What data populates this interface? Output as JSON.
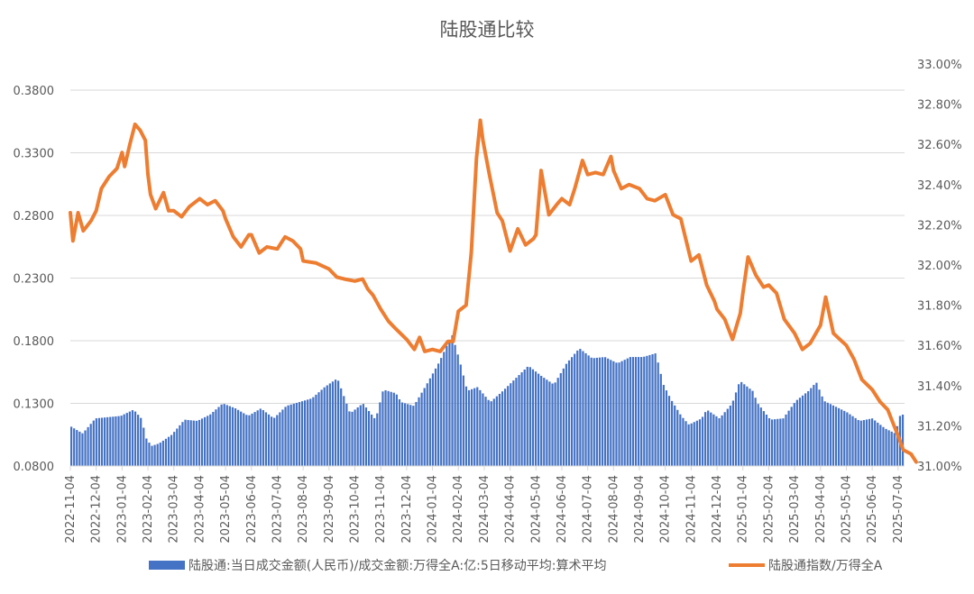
{
  "chart_data": {
    "type": "bar+line",
    "title": "陆股通比较",
    "legend_position": "bottom",
    "grid": true,
    "colors": {
      "bars": "#4472C4",
      "line": "#ED7D31",
      "grid": "#D9D9D9",
      "text": "#595959"
    },
    "y_left": {
      "ylim": [
        0.08,
        0.38
      ],
      "ticks": [
        "0.0800",
        "0.1300",
        "0.1800",
        "0.2300",
        "0.2800",
        "0.3300",
        "0.3800"
      ],
      "tick_values": [
        0.08,
        0.13,
        0.18,
        0.23,
        0.28,
        0.33,
        0.38
      ]
    },
    "y_right": {
      "ylim": [
        31.0,
        33.0
      ],
      "ticks": [
        "31.00%",
        "31.20%",
        "31.40%",
        "31.60%",
        "31.80%",
        "32.00%",
        "32.20%",
        "32.40%",
        "32.60%",
        "32.80%",
        "33.00%"
      ],
      "tick_values": [
        31.0,
        31.2,
        31.4,
        31.6,
        31.8,
        32.0,
        32.2,
        32.4,
        32.6,
        32.8,
        33.0
      ]
    },
    "x_ticks": [
      "2022-11-04",
      "2022-12-04",
      "2023-01-04",
      "2023-02-04",
      "2023-03-04",
      "2023-04-04",
      "2023-05-04",
      "2023-06-04",
      "2023-07-04",
      "2023-08-04",
      "2023-09-04",
      "2023-10-04",
      "2023-11-04",
      "2023-12-04",
      "2024-01-04",
      "2024-02-04",
      "2024-03-04",
      "2024-04-04",
      "2024-05-04",
      "2024-06-04",
      "2024-07-04",
      "2024-08-04",
      "2024-09-04",
      "2024-10-04",
      "2024-11-04",
      "2024-12-04",
      "2025-01-04",
      "2025-02-04",
      "2025-03-04",
      "2025-04-04",
      "2025-05-04",
      "2025-06-04",
      "2025-07-04"
    ],
    "series": [
      {
        "name": "陆股通:当日成交金额(人民币)/成交金额:万得全A:亿:5日移动平均:算术平均",
        "type": "bar",
        "axis": "left",
        "keyframes": [
          [
            0,
            0.112
          ],
          [
            0.5,
            0.106
          ],
          [
            1,
            0.118
          ],
          [
            2,
            0.12
          ],
          [
            2.5,
            0.125
          ],
          [
            2.8,
            0.118
          ],
          [
            3.0,
            0.102
          ],
          [
            3.2,
            0.096
          ],
          [
            3.5,
            0.098
          ],
          [
            4,
            0.105
          ],
          [
            4.5,
            0.117
          ],
          [
            5,
            0.116
          ],
          [
            5.5,
            0.121
          ],
          [
            6,
            0.13
          ],
          [
            6.5,
            0.126
          ],
          [
            7,
            0.12
          ],
          [
            7.5,
            0.126
          ],
          [
            8,
            0.118
          ],
          [
            8.5,
            0.128
          ],
          [
            9,
            0.131
          ],
          [
            9.5,
            0.134
          ],
          [
            10,
            0.143
          ],
          [
            10.5,
            0.15
          ],
          [
            11,
            0.122
          ],
          [
            11.5,
            0.13
          ],
          [
            12,
            0.117
          ],
          [
            12.3,
            0.141
          ],
          [
            12.8,
            0.138
          ],
          [
            13,
            0.131
          ],
          [
            13.5,
            0.128
          ],
          [
            14,
            0.145
          ],
          [
            14.5,
            0.163
          ],
          [
            15,
            0.185
          ],
          [
            15.3,
            0.164
          ],
          [
            15.6,
            0.14
          ],
          [
            16,
            0.143
          ],
          [
            16.5,
            0.131
          ],
          [
            17,
            0.14
          ],
          [
            17.5,
            0.15
          ],
          [
            18,
            0.16
          ],
          [
            18.5,
            0.152
          ],
          [
            19,
            0.145
          ],
          [
            19.5,
            0.162
          ],
          [
            20,
            0.174
          ],
          [
            20.5,
            0.166
          ],
          [
            21,
            0.167
          ],
          [
            21.5,
            0.162
          ],
          [
            22,
            0.167
          ],
          [
            22.5,
            0.167
          ],
          [
            23,
            0.17
          ],
          [
            23.3,
            0.145
          ],
          [
            23.6,
            0.133
          ],
          [
            24,
            0.12
          ],
          [
            24.3,
            0.113
          ],
          [
            24.8,
            0.118
          ],
          [
            25,
            0.125
          ],
          [
            25.5,
            0.118
          ],
          [
            26,
            0.13
          ],
          [
            26.3,
            0.148
          ],
          [
            26.8,
            0.14
          ],
          [
            27,
            0.13
          ],
          [
            27.5,
            0.117
          ],
          [
            28,
            0.118
          ],
          [
            28.5,
            0.132
          ],
          [
            29,
            0.14
          ],
          [
            29.3,
            0.147
          ],
          [
            29.6,
            0.132
          ],
          [
            30,
            0.128
          ],
          [
            30.5,
            0.123
          ],
          [
            31,
            0.116
          ],
          [
            31.5,
            0.118
          ],
          [
            32,
            0.11
          ],
          [
            32.4,
            0.106
          ],
          [
            32.6,
            0.121
          ]
        ]
      },
      {
        "name": "陆股通指数/万得全A",
        "type": "line",
        "axis": "right",
        "keyframes": [
          [
            0,
            32.26
          ],
          [
            0.1,
            32.12
          ],
          [
            0.3,
            32.26
          ],
          [
            0.5,
            32.17
          ],
          [
            0.8,
            32.22
          ],
          [
            1,
            32.27
          ],
          [
            1.2,
            32.38
          ],
          [
            1.5,
            32.44
          ],
          [
            1.8,
            32.48
          ],
          [
            2,
            32.56
          ],
          [
            2.1,
            32.49
          ],
          [
            2.3,
            32.6
          ],
          [
            2.5,
            32.7
          ],
          [
            2.7,
            32.67
          ],
          [
            2.9,
            32.62
          ],
          [
            3.0,
            32.45
          ],
          [
            3.1,
            32.35
          ],
          [
            3.3,
            32.28
          ],
          [
            3.6,
            32.36
          ],
          [
            3.8,
            32.27
          ],
          [
            4,
            32.27
          ],
          [
            4.3,
            32.24
          ],
          [
            4.6,
            32.29
          ],
          [
            5,
            32.33
          ],
          [
            5.3,
            32.3
          ],
          [
            5.6,
            32.32
          ],
          [
            5.9,
            32.27
          ],
          [
            6,
            32.23
          ],
          [
            6.3,
            32.14
          ],
          [
            6.6,
            32.09
          ],
          [
            6.9,
            32.15
          ],
          [
            7,
            32.15
          ],
          [
            7.3,
            32.06
          ],
          [
            7.6,
            32.09
          ],
          [
            8,
            32.08
          ],
          [
            8.3,
            32.14
          ],
          [
            8.6,
            32.12
          ],
          [
            8.9,
            32.08
          ],
          [
            9,
            32.02
          ],
          [
            9.5,
            32.01
          ],
          [
            10,
            31.98
          ],
          [
            10.3,
            31.94
          ],
          [
            10.6,
            31.93
          ],
          [
            11,
            31.92
          ],
          [
            11.3,
            31.93
          ],
          [
            11.5,
            31.88
          ],
          [
            11.7,
            31.85
          ],
          [
            12,
            31.78
          ],
          [
            12.3,
            31.72
          ],
          [
            12.6,
            31.68
          ],
          [
            13,
            31.63
          ],
          [
            13.3,
            31.58
          ],
          [
            13.5,
            31.64
          ],
          [
            13.7,
            31.57
          ],
          [
            14,
            31.58
          ],
          [
            14.3,
            31.57
          ],
          [
            14.6,
            31.62
          ],
          [
            14.8,
            31.62
          ],
          [
            15,
            31.77
          ],
          [
            15.3,
            31.8
          ],
          [
            15.5,
            32.06
          ],
          [
            15.7,
            32.53
          ],
          [
            15.85,
            32.72
          ],
          [
            15.95,
            32.62
          ],
          [
            16.2,
            32.45
          ],
          [
            16.5,
            32.26
          ],
          [
            16.7,
            32.22
          ],
          [
            17,
            32.07
          ],
          [
            17.3,
            32.18
          ],
          [
            17.6,
            32.1
          ],
          [
            17.9,
            32.13
          ],
          [
            18,
            32.15
          ],
          [
            18.2,
            32.47
          ],
          [
            18.5,
            32.25
          ],
          [
            18.8,
            32.3
          ],
          [
            19,
            32.33
          ],
          [
            19.3,
            32.3
          ],
          [
            19.5,
            32.38
          ],
          [
            19.8,
            32.52
          ],
          [
            20,
            32.45
          ],
          [
            20.3,
            32.46
          ],
          [
            20.6,
            32.45
          ],
          [
            20.9,
            32.54
          ],
          [
            21,
            32.47
          ],
          [
            21.3,
            32.38
          ],
          [
            21.6,
            32.4
          ],
          [
            22,
            32.38
          ],
          [
            22.3,
            32.33
          ],
          [
            22.6,
            32.32
          ],
          [
            23,
            32.35
          ],
          [
            23.3,
            32.25
          ],
          [
            23.6,
            32.23
          ],
          [
            24,
            32.02
          ],
          [
            24.3,
            32.05
          ],
          [
            24.6,
            31.9
          ],
          [
            24.9,
            31.82
          ],
          [
            25,
            31.78
          ],
          [
            25.3,
            31.73
          ],
          [
            25.6,
            31.63
          ],
          [
            25.9,
            31.76
          ],
          [
            26,
            31.86
          ],
          [
            26.2,
            32.04
          ],
          [
            26.5,
            31.95
          ],
          [
            26.8,
            31.89
          ],
          [
            27,
            31.9
          ],
          [
            27.3,
            31.86
          ],
          [
            27.6,
            31.73
          ],
          [
            28,
            31.66
          ],
          [
            28.3,
            31.58
          ],
          [
            28.6,
            31.61
          ],
          [
            29,
            31.7
          ],
          [
            29.2,
            31.84
          ],
          [
            29.5,
            31.66
          ],
          [
            30,
            31.6
          ],
          [
            30.3,
            31.53
          ],
          [
            30.6,
            31.43
          ],
          [
            31,
            31.38
          ],
          [
            31.3,
            31.32
          ],
          [
            31.6,
            31.28
          ],
          [
            32,
            31.15
          ],
          [
            32.2,
            31.08
          ],
          [
            32.5,
            31.06
          ],
          [
            32.7,
            31.02
          ]
        ]
      }
    ]
  }
}
